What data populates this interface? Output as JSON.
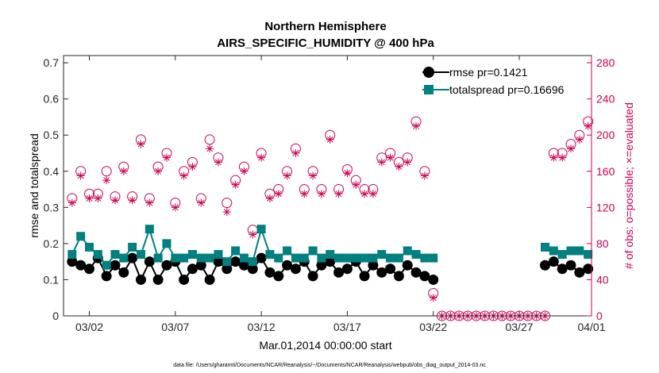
{
  "chart_data": {
    "type": "scatter",
    "title": "Northern Hemisphere",
    "subtitle": "AIRS_SPECIFIC_HUMIDITY @ 400 hPa",
    "xlabel": "Mar.01,2014 00:00:00 start",
    "ylabel": "rmse and totalspread",
    "ylabel_right": "# of obs: o=possible; ×=evaluated",
    "xlim": [
      0.5,
      31.2
    ],
    "ylim": [
      0,
      0.72
    ],
    "ylim_right": [
      0,
      288
    ],
    "x_ticks": [
      {
        "value": 2,
        "label": "03/02"
      },
      {
        "value": 7,
        "label": "03/07"
      },
      {
        "value": 12,
        "label": "03/12"
      },
      {
        "value": 17,
        "label": "03/17"
      },
      {
        "value": 22,
        "label": "03/22"
      },
      {
        "value": 27,
        "label": "03/27"
      },
      {
        "value": 32,
        "label": "04/01"
      }
    ],
    "y_ticks": [
      {
        "value": 0,
        "label": "0"
      },
      {
        "value": 0.1,
        "label": "0.1"
      },
      {
        "value": 0.2,
        "label": "0.2"
      },
      {
        "value": 0.3,
        "label": "0.3"
      },
      {
        "value": 0.4,
        "label": "0.4"
      },
      {
        "value": 0.5,
        "label": "0.5"
      },
      {
        "value": 0.6,
        "label": "0.6"
      },
      {
        "value": 0.7,
        "label": "0.7"
      }
    ],
    "y_ticks_right": [
      {
        "value": 0,
        "label": "0"
      },
      {
        "value": 40,
        "label": "40"
      },
      {
        "value": 80,
        "label": "80"
      },
      {
        "value": 120,
        "label": "120"
      },
      {
        "value": 160,
        "label": "160"
      },
      {
        "value": 200,
        "label": "200"
      },
      {
        "value": 240,
        "label": "240"
      },
      {
        "value": 280,
        "label": "280"
      }
    ],
    "legend_position": "top-right",
    "legend": [
      "rmse pr=0.1421",
      "totalspread pr=0.16696"
    ],
    "series": [
      {
        "name": "rmse pr=0.1421",
        "color": "#000000",
        "marker": "circle",
        "segments": [
          {
            "x": [
              1.0,
              1.5,
              2.0,
              2.5,
              3.0,
              3.5,
              4.0,
              4.5,
              5.0,
              5.5,
              6.0,
              6.5,
              7.0,
              7.5,
              8.0,
              8.5,
              9.0,
              9.5,
              10.0,
              10.5,
              11.0,
              11.5,
              12.0,
              12.5,
              13.0,
              13.5,
              14.0,
              14.5,
              15.0,
              15.5,
              16.0,
              16.5,
              17.0,
              17.5,
              18.0,
              18.5,
              19.0,
              19.5,
              20.0,
              20.5,
              21.0,
              21.5,
              22.0
            ],
            "y": [
              0.15,
              0.14,
              0.13,
              0.16,
              0.11,
              0.14,
              0.12,
              0.16,
              0.1,
              0.15,
              0.1,
              0.14,
              0.15,
              0.1,
              0.13,
              0.14,
              0.1,
              0.15,
              0.13,
              0.15,
              0.14,
              0.13,
              0.16,
              0.12,
              0.11,
              0.14,
              0.13,
              0.15,
              0.11,
              0.14,
              0.15,
              0.12,
              0.13,
              0.15,
              0.11,
              0.14,
              0.12,
              0.13,
              0.11,
              0.14,
              0.12,
              0.11,
              0.1
            ]
          },
          {
            "x": [
              28.5,
              29.0,
              29.5,
              30.0,
              30.5,
              31.0
            ],
            "y": [
              0.14,
              0.15,
              0.13,
              0.14,
              0.12,
              0.13
            ]
          }
        ]
      },
      {
        "name": "totalspread pr=0.16696",
        "color": "#008080",
        "marker": "square",
        "segments": [
          {
            "x": [
              1.0,
              1.5,
              2.0,
              2.5,
              3.0,
              3.5,
              4.0,
              4.5,
              5.0,
              5.5,
              6.0,
              6.5,
              7.0,
              7.5,
              8.0,
              8.5,
              9.0,
              9.5,
              10.0,
              10.5,
              11.0,
              11.5,
              12.0,
              12.5,
              13.0,
              13.5,
              14.0,
              14.5,
              15.0,
              15.5,
              16.0,
              16.5,
              17.0,
              17.5,
              18.0,
              18.5,
              19.0,
              19.5,
              20.0,
              20.5,
              21.0,
              21.5,
              22.0
            ],
            "y": [
              0.17,
              0.22,
              0.19,
              0.17,
              0.14,
              0.17,
              0.16,
              0.19,
              0.17,
              0.24,
              0.16,
              0.2,
              0.16,
              0.16,
              0.17,
              0.16,
              0.16,
              0.17,
              0.15,
              0.18,
              0.16,
              0.15,
              0.24,
              0.17,
              0.16,
              0.18,
              0.16,
              0.16,
              0.18,
              0.16,
              0.17,
              0.16,
              0.16,
              0.16,
              0.16,
              0.16,
              0.17,
              0.16,
              0.16,
              0.18,
              0.17,
              0.16,
              0.16
            ]
          },
          {
            "x": [
              28.5,
              29.0,
              29.5,
              30.0,
              30.5,
              31.0
            ],
            "y": [
              0.19,
              0.18,
              0.17,
              0.18,
              0.18,
              0.17
            ]
          }
        ]
      },
      {
        "name": "possible",
        "color": "#cc0055",
        "marker": "open-circle",
        "axis": "right",
        "x": [
          1.0,
          1.5,
          2.0,
          2.5,
          3.0,
          3.5,
          4.0,
          4.5,
          5.0,
          5.5,
          6.0,
          6.5,
          7.0,
          7.5,
          8.0,
          8.5,
          9.0,
          9.5,
          10.0,
          10.5,
          11.0,
          11.5,
          12.0,
          12.5,
          13.0,
          13.5,
          14.0,
          14.5,
          15.0,
          15.5,
          16.0,
          16.5,
          17.0,
          17.5,
          18.0,
          18.5,
          19.0,
          19.5,
          20.0,
          20.5,
          21.0,
          21.5,
          22.0,
          22.5,
          23.0,
          23.5,
          24.0,
          24.5,
          25.0,
          25.5,
          26.0,
          26.5,
          27.0,
          27.5,
          28.0,
          28.5,
          29.0,
          29.5,
          30.0,
          30.5,
          31.0
        ],
        "y": [
          130,
          160,
          135,
          135,
          160,
          132,
          165,
          132,
          195,
          130,
          165,
          180,
          125,
          160,
          170,
          130,
          195,
          175,
          125,
          150,
          165,
          95,
          180,
          135,
          140,
          160,
          185,
          140,
          160,
          140,
          200,
          140,
          162,
          150,
          140,
          140,
          175,
          180,
          170,
          175,
          215,
          160,
          25,
          0,
          0,
          0,
          0,
          0,
          0,
          0,
          0,
          0,
          0,
          0,
          0,
          0,
          180,
          180,
          190,
          200,
          215
        ]
      },
      {
        "name": "evaluated",
        "color": "#cc0055",
        "marker": "asterisk",
        "axis": "right",
        "x": [
          1.0,
          1.5,
          2.0,
          2.5,
          3.0,
          3.5,
          4.0,
          4.5,
          5.0,
          5.5,
          6.0,
          6.5,
          7.0,
          7.5,
          8.0,
          8.5,
          9.0,
          9.5,
          10.0,
          10.5,
          11.0,
          11.5,
          12.0,
          12.5,
          13.0,
          13.5,
          14.0,
          14.5,
          15.0,
          15.5,
          16.0,
          16.5,
          17.0,
          17.5,
          18.0,
          18.5,
          19.0,
          19.5,
          20.0,
          20.5,
          21.0,
          21.5,
          22.0,
          22.5,
          23.0,
          23.5,
          24.0,
          24.5,
          25.0,
          25.5,
          26.0,
          26.5,
          27.0,
          27.5,
          28.0,
          28.5,
          29.0,
          29.5,
          30.0,
          30.5,
          31.0
        ],
        "y": [
          125,
          155,
          130,
          130,
          150,
          128,
          160,
          128,
          190,
          125,
          160,
          175,
          120,
          155,
          165,
          125,
          185,
          170,
          115,
          145,
          160,
          90,
          175,
          130,
          135,
          155,
          180,
          135,
          155,
          135,
          195,
          135,
          158,
          145,
          135,
          135,
          170,
          175,
          165,
          170,
          210,
          155,
          20,
          0,
          0,
          0,
          0,
          0,
          0,
          0,
          0,
          0,
          0,
          0,
          0,
          0,
          175,
          175,
          185,
          195,
          210
        ]
      }
    ],
    "footnote": "data file: /Users/gharamti/Documents/NCAR/Reanalysis/~/Documents/NCAR/Reanalysis/webpub/obs_diag_output_2014-03.nc"
  }
}
